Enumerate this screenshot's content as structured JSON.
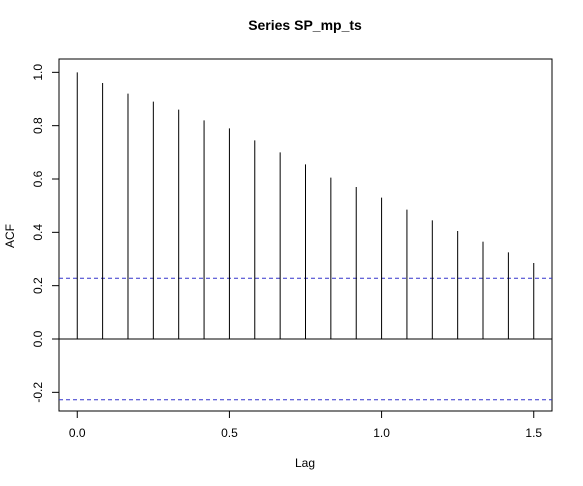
{
  "chart_data": {
    "type": "bar",
    "title": "Series  SP_mp_ts",
    "xlabel": "Lag",
    "ylabel": "ACF",
    "x": [
      0.0,
      0.0833,
      0.1667,
      0.25,
      0.3333,
      0.4167,
      0.5,
      0.5833,
      0.6667,
      0.75,
      0.8333,
      0.9167,
      1.0,
      1.0833,
      1.1667,
      1.25,
      1.3333,
      1.4167,
      1.5
    ],
    "values": [
      1.0,
      0.96,
      0.92,
      0.89,
      0.86,
      0.82,
      0.79,
      0.745,
      0.7,
      0.655,
      0.605,
      0.57,
      0.53,
      0.485,
      0.445,
      0.405,
      0.365,
      0.325,
      0.285
    ],
    "xlim": [
      -0.06,
      1.56
    ],
    "ylim": [
      -0.27,
      1.05
    ],
    "xticks": [
      "0.0",
      "0.5",
      "1.0",
      "1.5"
    ],
    "yticks": [
      "-0.2",
      "0.0",
      "0.2",
      "0.4",
      "0.6",
      "0.8",
      "1.0"
    ],
    "confidence_bounds": [
      0.228,
      -0.228
    ],
    "colors": {
      "spikes": "#000000",
      "bounds": "#3333cc",
      "zero_line": "#000000"
    },
    "grid": false,
    "legend": "none"
  }
}
